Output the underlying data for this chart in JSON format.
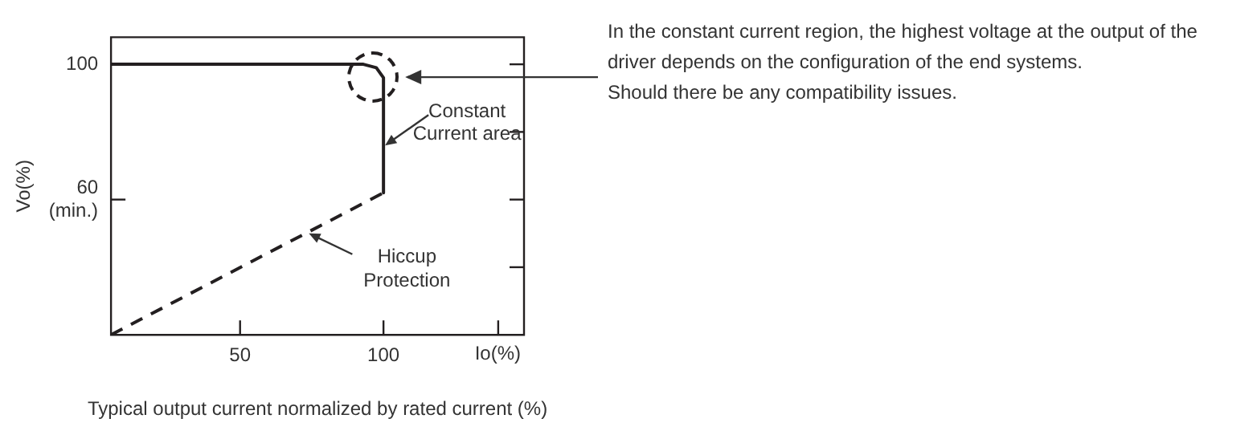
{
  "chart_data": {
    "type": "line",
    "xlabel": "Io(%)",
    "ylabel": "Vo(%)",
    "xlim": [
      5,
      149
    ],
    "xticks": [
      50,
      100,
      {
        "value": 140,
        "label": null
      }
    ],
    "ylim": [
      20,
      108
    ],
    "yticks": [
      {
        "value": 40,
        "label": null
      },
      {
        "value": 60,
        "label": "60 (min.)"
      },
      {
        "value": 80,
        "label": null
      },
      100
    ],
    "grid": false,
    "legend": false,
    "marker": "none",
    "series": [
      {
        "color": "#231f20",
        "line_style": "solid",
        "x": [
          5,
          93,
          97.5,
          100,
          100
        ],
        "values": [
          100,
          100,
          99,
          96,
          62
        ]
      },
      {
        "color": "#231f20",
        "line_style": "dashed",
        "x": [
          5,
          100
        ],
        "values": [
          20,
          62
        ]
      }
    ],
    "annotations": [
      "In the constant current region, the highest voltage at the output of the driver depends on the configuration of the end systems.",
      "Should there be any compatibility issues.",
      {
        "text": "Constant Current area",
        "x": 100,
        "y": 76
      },
      {
        "text": "Hiccup Protection",
        "x": 74,
        "y": 50
      },
      "Typical output current normalized by rated current (%)"
    ]
  }
}
